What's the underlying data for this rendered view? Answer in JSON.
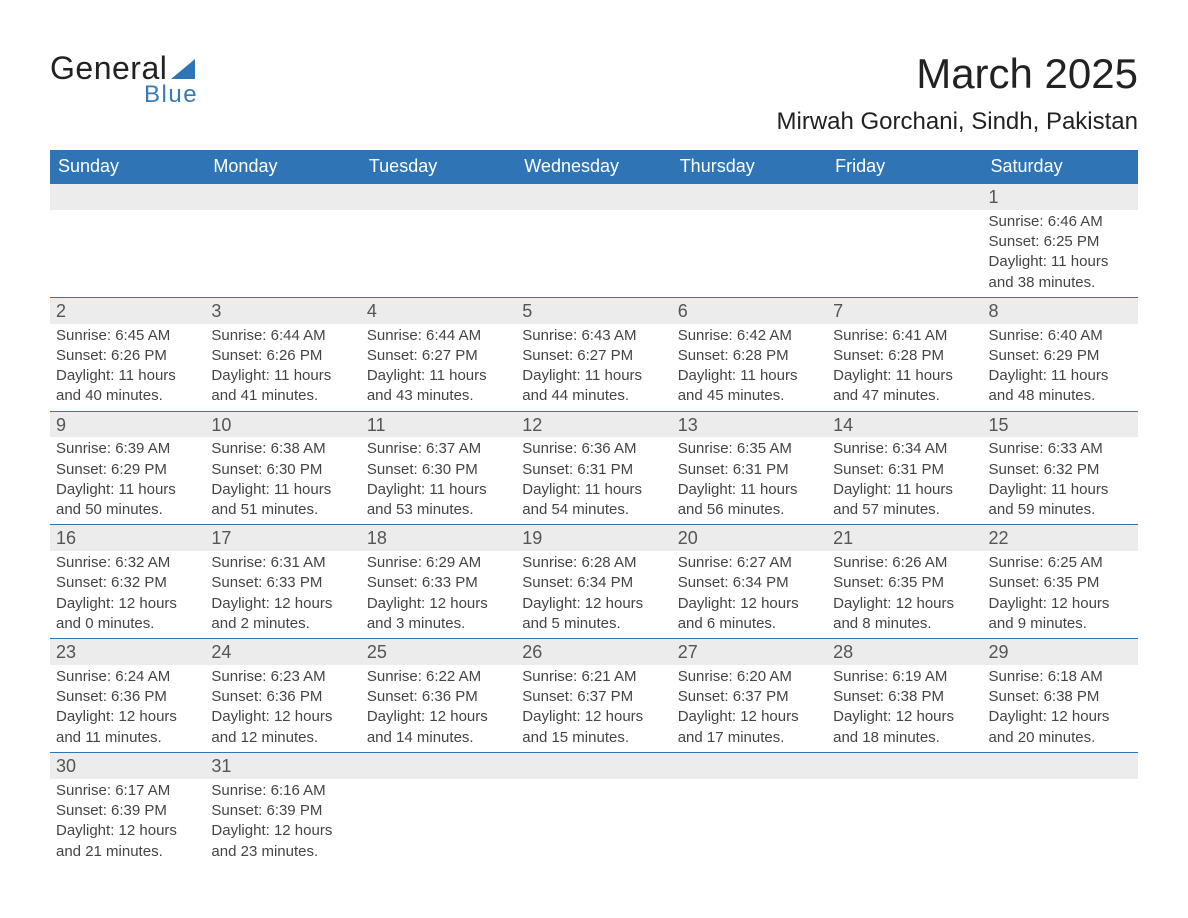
{
  "logo": {
    "text1": "General",
    "text2": "Blue",
    "tri_color": "#2f75b5"
  },
  "title": "March 2025",
  "location": "Mirwah Gorchani, Sindh, Pakistan",
  "colors": {
    "header_bg": "#2f75b5",
    "header_fg": "#ffffff",
    "daynum_bg": "#ececec",
    "row_divider": "#2f75b5",
    "text": "#444444",
    "background": "#ffffff"
  },
  "font_sizes": {
    "title_pt": 42,
    "location_pt": 24,
    "weekday_pt": 18,
    "daynum_pt": 18,
    "details_pt": 15
  },
  "weekdays": [
    "Sunday",
    "Monday",
    "Tuesday",
    "Wednesday",
    "Thursday",
    "Friday",
    "Saturday"
  ],
  "weeks": [
    [
      null,
      null,
      null,
      null,
      null,
      null,
      {
        "n": "1",
        "sunrise": "Sunrise: 6:46 AM",
        "sunset": "Sunset: 6:25 PM",
        "day1": "Daylight: 11 hours",
        "day2": "and 38 minutes."
      }
    ],
    [
      {
        "n": "2",
        "sunrise": "Sunrise: 6:45 AM",
        "sunset": "Sunset: 6:26 PM",
        "day1": "Daylight: 11 hours",
        "day2": "and 40 minutes."
      },
      {
        "n": "3",
        "sunrise": "Sunrise: 6:44 AM",
        "sunset": "Sunset: 6:26 PM",
        "day1": "Daylight: 11 hours",
        "day2": "and 41 minutes."
      },
      {
        "n": "4",
        "sunrise": "Sunrise: 6:44 AM",
        "sunset": "Sunset: 6:27 PM",
        "day1": "Daylight: 11 hours",
        "day2": "and 43 minutes."
      },
      {
        "n": "5",
        "sunrise": "Sunrise: 6:43 AM",
        "sunset": "Sunset: 6:27 PM",
        "day1": "Daylight: 11 hours",
        "day2": "and 44 minutes."
      },
      {
        "n": "6",
        "sunrise": "Sunrise: 6:42 AM",
        "sunset": "Sunset: 6:28 PM",
        "day1": "Daylight: 11 hours",
        "day2": "and 45 minutes."
      },
      {
        "n": "7",
        "sunrise": "Sunrise: 6:41 AM",
        "sunset": "Sunset: 6:28 PM",
        "day1": "Daylight: 11 hours",
        "day2": "and 47 minutes."
      },
      {
        "n": "8",
        "sunrise": "Sunrise: 6:40 AM",
        "sunset": "Sunset: 6:29 PM",
        "day1": "Daylight: 11 hours",
        "day2": "and 48 minutes."
      }
    ],
    [
      {
        "n": "9",
        "sunrise": "Sunrise: 6:39 AM",
        "sunset": "Sunset: 6:29 PM",
        "day1": "Daylight: 11 hours",
        "day2": "and 50 minutes."
      },
      {
        "n": "10",
        "sunrise": "Sunrise: 6:38 AM",
        "sunset": "Sunset: 6:30 PM",
        "day1": "Daylight: 11 hours",
        "day2": "and 51 minutes."
      },
      {
        "n": "11",
        "sunrise": "Sunrise: 6:37 AM",
        "sunset": "Sunset: 6:30 PM",
        "day1": "Daylight: 11 hours",
        "day2": "and 53 minutes."
      },
      {
        "n": "12",
        "sunrise": "Sunrise: 6:36 AM",
        "sunset": "Sunset: 6:31 PM",
        "day1": "Daylight: 11 hours",
        "day2": "and 54 minutes."
      },
      {
        "n": "13",
        "sunrise": "Sunrise: 6:35 AM",
        "sunset": "Sunset: 6:31 PM",
        "day1": "Daylight: 11 hours",
        "day2": "and 56 minutes."
      },
      {
        "n": "14",
        "sunrise": "Sunrise: 6:34 AM",
        "sunset": "Sunset: 6:31 PM",
        "day1": "Daylight: 11 hours",
        "day2": "and 57 minutes."
      },
      {
        "n": "15",
        "sunrise": "Sunrise: 6:33 AM",
        "sunset": "Sunset: 6:32 PM",
        "day1": "Daylight: 11 hours",
        "day2": "and 59 minutes."
      }
    ],
    [
      {
        "n": "16",
        "sunrise": "Sunrise: 6:32 AM",
        "sunset": "Sunset: 6:32 PM",
        "day1": "Daylight: 12 hours",
        "day2": "and 0 minutes."
      },
      {
        "n": "17",
        "sunrise": "Sunrise: 6:31 AM",
        "sunset": "Sunset: 6:33 PM",
        "day1": "Daylight: 12 hours",
        "day2": "and 2 minutes."
      },
      {
        "n": "18",
        "sunrise": "Sunrise: 6:29 AM",
        "sunset": "Sunset: 6:33 PM",
        "day1": "Daylight: 12 hours",
        "day2": "and 3 minutes."
      },
      {
        "n": "19",
        "sunrise": "Sunrise: 6:28 AM",
        "sunset": "Sunset: 6:34 PM",
        "day1": "Daylight: 12 hours",
        "day2": "and 5 minutes."
      },
      {
        "n": "20",
        "sunrise": "Sunrise: 6:27 AM",
        "sunset": "Sunset: 6:34 PM",
        "day1": "Daylight: 12 hours",
        "day2": "and 6 minutes."
      },
      {
        "n": "21",
        "sunrise": "Sunrise: 6:26 AM",
        "sunset": "Sunset: 6:35 PM",
        "day1": "Daylight: 12 hours",
        "day2": "and 8 minutes."
      },
      {
        "n": "22",
        "sunrise": "Sunrise: 6:25 AM",
        "sunset": "Sunset: 6:35 PM",
        "day1": "Daylight: 12 hours",
        "day2": "and 9 minutes."
      }
    ],
    [
      {
        "n": "23",
        "sunrise": "Sunrise: 6:24 AM",
        "sunset": "Sunset: 6:36 PM",
        "day1": "Daylight: 12 hours",
        "day2": "and 11 minutes."
      },
      {
        "n": "24",
        "sunrise": "Sunrise: 6:23 AM",
        "sunset": "Sunset: 6:36 PM",
        "day1": "Daylight: 12 hours",
        "day2": "and 12 minutes."
      },
      {
        "n": "25",
        "sunrise": "Sunrise: 6:22 AM",
        "sunset": "Sunset: 6:36 PM",
        "day1": "Daylight: 12 hours",
        "day2": "and 14 minutes."
      },
      {
        "n": "26",
        "sunrise": "Sunrise: 6:21 AM",
        "sunset": "Sunset: 6:37 PM",
        "day1": "Daylight: 12 hours",
        "day2": "and 15 minutes."
      },
      {
        "n": "27",
        "sunrise": "Sunrise: 6:20 AM",
        "sunset": "Sunset: 6:37 PM",
        "day1": "Daylight: 12 hours",
        "day2": "and 17 minutes."
      },
      {
        "n": "28",
        "sunrise": "Sunrise: 6:19 AM",
        "sunset": "Sunset: 6:38 PM",
        "day1": "Daylight: 12 hours",
        "day2": "and 18 minutes."
      },
      {
        "n": "29",
        "sunrise": "Sunrise: 6:18 AM",
        "sunset": "Sunset: 6:38 PM",
        "day1": "Daylight: 12 hours",
        "day2": "and 20 minutes."
      }
    ],
    [
      {
        "n": "30",
        "sunrise": "Sunrise: 6:17 AM",
        "sunset": "Sunset: 6:39 PM",
        "day1": "Daylight: 12 hours",
        "day2": "and 21 minutes."
      },
      {
        "n": "31",
        "sunrise": "Sunrise: 6:16 AM",
        "sunset": "Sunset: 6:39 PM",
        "day1": "Daylight: 12 hours",
        "day2": "and 23 minutes."
      },
      null,
      null,
      null,
      null,
      null
    ]
  ]
}
